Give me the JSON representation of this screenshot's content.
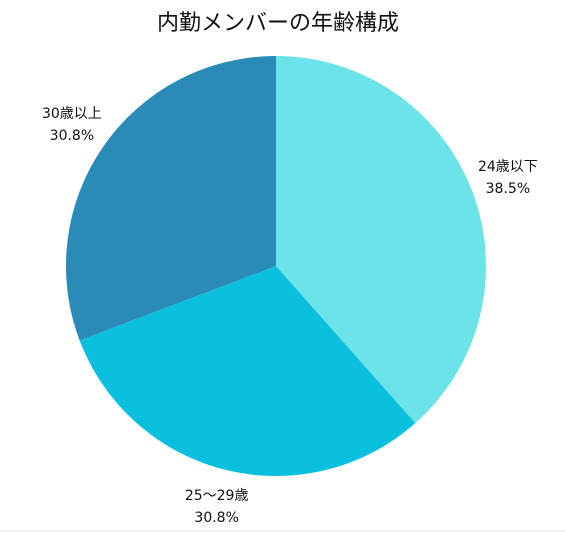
{
  "chart_data": {
    "type": "pie",
    "title": "内勤メンバーの年齢構成",
    "categories": [
      "24歳以下",
      "25〜29歳",
      "30歳以上"
    ],
    "values": [
      38.5,
      30.8,
      30.8
    ],
    "value_labels": [
      "38.5%",
      "30.8%",
      "30.8%"
    ],
    "colors": [
      "#6ae4e8",
      "#0bbfde",
      "#2a8bb8"
    ]
  }
}
